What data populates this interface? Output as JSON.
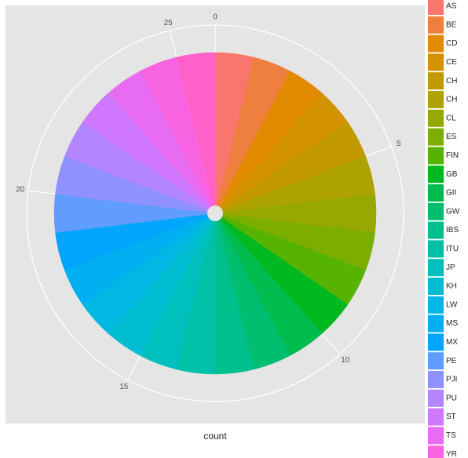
{
  "chart_data": {
    "type": "pie",
    "x_label": "count",
    "categories": [
      "AS",
      "BE",
      "CD",
      "CE",
      "CH",
      "CH",
      "CL",
      "ES",
      "FIN",
      "GB",
      "GII",
      "GW",
      "IBS",
      "ITU",
      "JP",
      "KH",
      "LW",
      "MS",
      "MX",
      "PE",
      "PJI",
      "PU",
      "ST",
      "TS",
      "YR",
      null
    ],
    "values": [
      1,
      1,
      1,
      1,
      1,
      1,
      1,
      1,
      1,
      1,
      1,
      1,
      1,
      1,
      1,
      1,
      1,
      1,
      1,
      1,
      1,
      1,
      1,
      1,
      1,
      1
    ],
    "colors": [
      "#F8766D",
      "#EE7F3E",
      "#E28A00",
      "#D39200",
      "#C29A00",
      "#AEA200",
      "#97A800",
      "#7CAE00",
      "#56B400",
      "#00B81F",
      "#00BB4E",
      "#00BE70",
      "#00C08E",
      "#00C1A8",
      "#00C0BE",
      "#00BDD2",
      "#00B8E3",
      "#00B0F1",
      "#00A6FB",
      "#619CFF",
      "#8F91FF",
      "#B385FF",
      "#D078FF",
      "#E76BF3",
      "#F763E0",
      "#FF61C9"
    ],
    "xlim": [
      0,
      26
    ],
    "xticks": [
      0,
      5,
      10,
      15,
      20,
      25
    ],
    "grid": true
  }
}
